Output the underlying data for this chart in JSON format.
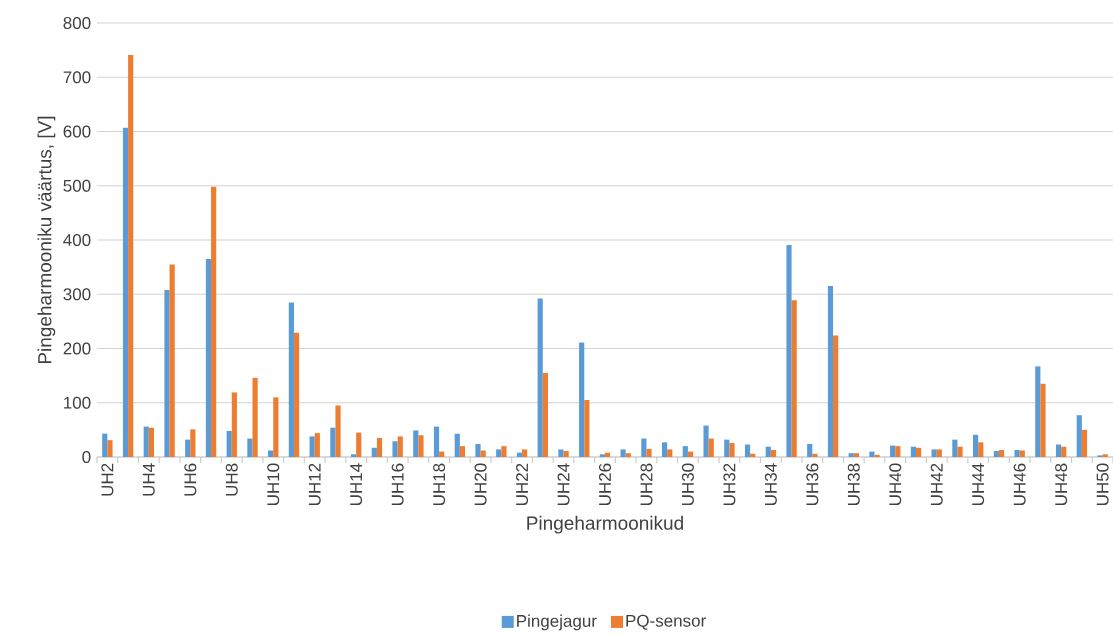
{
  "chart_data": {
    "type": "bar",
    "xlabel": "Pingeharmoonikud",
    "ylabel": "Pingeharmooniku väärtus, [V]",
    "categories": [
      "UH2",
      null,
      "UH4",
      null,
      "UH6",
      null,
      "UH8",
      null,
      "UH10",
      null,
      "UH12",
      null,
      "UH14",
      null,
      "UH16",
      null,
      "UH18",
      null,
      "UH20",
      null,
      "UH22",
      null,
      "UH24",
      null,
      "UH26",
      null,
      "UH28",
      null,
      "UH30",
      null,
      "UH32",
      null,
      "UH34",
      null,
      "UH36",
      null,
      "UH38",
      null,
      "UH40",
      null,
      "UH42",
      null,
      "UH44",
      null,
      "UH46",
      null,
      "UH48",
      null,
      "UH50"
    ],
    "series": [
      {
        "name": "Pingejagur",
        "color": "#5b9bd5",
        "values": [
          43,
          607,
          56,
          308,
          32,
          365,
          48,
          34,
          12,
          285,
          38,
          54,
          5,
          17,
          29,
          49,
          56,
          43,
          24,
          14,
          8,
          292,
          14,
          211,
          5,
          14,
          34,
          27,
          20,
          58,
          32,
          23,
          19,
          391,
          24,
          315,
          7,
          10,
          21,
          19,
          14,
          32,
          41,
          11,
          13,
          167,
          23,
          77,
          3
        ]
      },
      {
        "name": "PQ-sensor",
        "color": "#ed7d31",
        "values": [
          31,
          741,
          54,
          355,
          51,
          498,
          119,
          146,
          110,
          229,
          44,
          95,
          45,
          35,
          38,
          40,
          10,
          20,
          12,
          20,
          14,
          155,
          11,
          105,
          8,
          7,
          15,
          14,
          10,
          34,
          26,
          6,
          13,
          289,
          6,
          224,
          7,
          4,
          20,
          17,
          14,
          19,
          27,
          13,
          12,
          135,
          19,
          50,
          5
        ]
      }
    ],
    "ylim": [
      0,
      800
    ],
    "yticks": [
      0,
      100,
      200,
      300,
      400,
      500,
      600,
      700,
      800
    ],
    "grid": "y",
    "legend": "bottom"
  }
}
